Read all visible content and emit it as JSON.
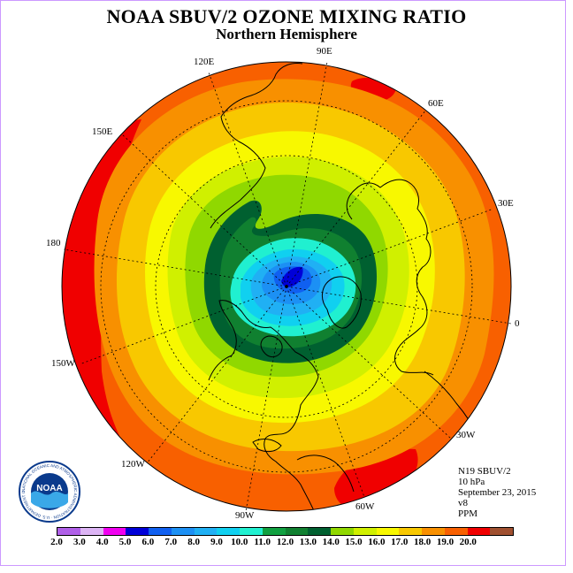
{
  "title": "NOAA SBUV/2 OZONE MIXING RATIO",
  "subtitle": "Northern Hemisphere",
  "longitude_labels": {
    "e120": "120E",
    "e90": "90E",
    "e60": "60E",
    "e30": "30E",
    "zero": "0",
    "w30": "30W",
    "w60": "60W",
    "w90": "90W",
    "w120": "120W",
    "w150": "150W",
    "d180": "180",
    "e150": "150E"
  },
  "info": {
    "instrument": "N19 SBUV/2",
    "level": "10 hPa",
    "date": "September 23, 2015",
    "version": "v8",
    "units": "PPM"
  },
  "logo": {
    "text": "NOAA",
    "ring_text": "NATIONAL OCEANIC AND ATMOSPHERIC ADMINISTRATION · U.S. DEPARTMENT OF COMMERCE ·"
  },
  "colorbar": {
    "ticks": [
      "2.0",
      "3.0",
      "4.0",
      "5.0",
      "6.0",
      "7.0",
      "8.0",
      "9.0",
      "10.0",
      "11.0",
      "12.0",
      "13.0",
      "14.0",
      "15.0",
      "16.0",
      "17.0",
      "18.0",
      "19.0",
      "20.0"
    ],
    "colors": [
      "#b060e8",
      "#dcb4f4",
      "#f000f0",
      "#0000d8",
      "#1060f0",
      "#1c90f4",
      "#20b0f4",
      "#10d0f0",
      "#20f0d0",
      "#10a040",
      "#108030",
      "#006030",
      "#90d800",
      "#d0f000",
      "#f8f800",
      "#f8c800",
      "#f89000",
      "#f86000",
      "#f00000",
      "#a05030"
    ]
  },
  "map_colors": {
    "outer": "#f86000",
    "ring17": "#f89000",
    "ring16": "#f8c800",
    "ring15": "#f8f800",
    "ring14": "#d0f000",
    "ring13": "#90d800",
    "ring12": "#006030",
    "ring11": "#108030",
    "ring10": "#20f0d0",
    "ring9": "#10d0f0",
    "ring8": "#20b0f4",
    "ring7": "#1c90f4",
    "ring6": "#1060f0",
    "center5": "#0000d8",
    "hot18": "#f00000"
  }
}
